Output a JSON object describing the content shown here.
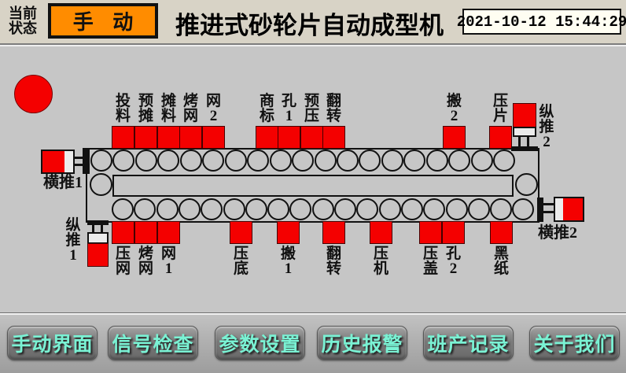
{
  "header": {
    "status_caption": [
      "当前",
      "状态"
    ],
    "status_value": "手 动",
    "title": "推进式砂轮片自动成型机",
    "datetime": "2021-10-12 15:44:29"
  },
  "machine": {
    "top_stations": [
      "投料",
      "预摊",
      "摊料",
      "烤网",
      "网2",
      "商标",
      "孔1",
      "预压",
      "翻转",
      "搬2",
      "压片"
    ],
    "bottom_stations": [
      "压网",
      "烤网",
      "网1",
      "压底",
      "搬1",
      "翻转",
      "压机",
      "压盖",
      "孔2",
      "黑纸"
    ],
    "pushers": {
      "left_horizontal": "横推1",
      "left_vertical": "纵推1",
      "right_vertical": "纵推2",
      "right_horizontal": "横推2"
    }
  },
  "nav": {
    "buttons": [
      "手动界面",
      "信号检查",
      "参数设置",
      "历史报警",
      "班产记录",
      "关于我们"
    ]
  },
  "colors": {
    "station_red": "#f40000",
    "status_orange": "#ff8c00",
    "nav_text_cyan": "#7af2d4"
  }
}
